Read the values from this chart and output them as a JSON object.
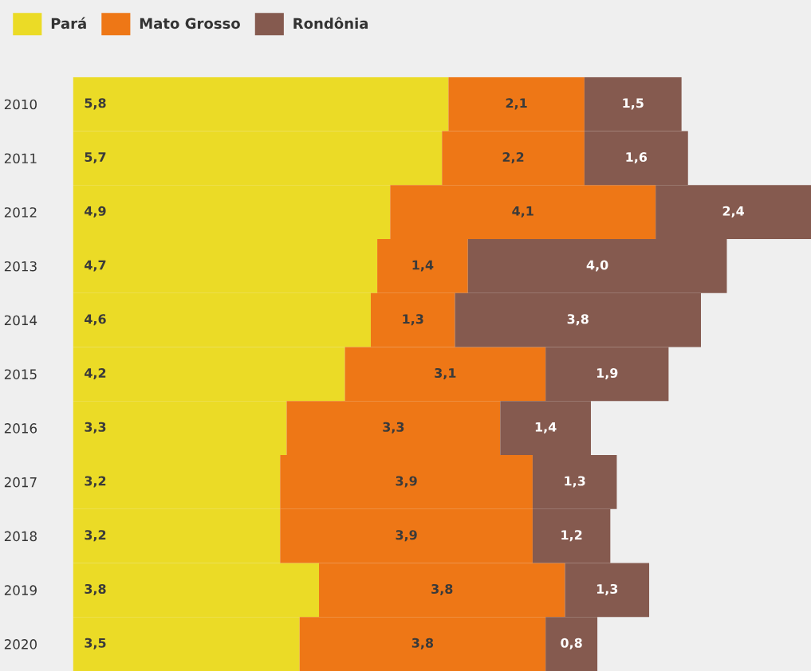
{
  "chart_data": {
    "type": "bar",
    "orientation": "horizontal",
    "stacked": true,
    "legend": "top left",
    "grid": false,
    "categories": [
      "2010",
      "2011",
      "2012",
      "2013",
      "2014",
      "2015",
      "2016",
      "2017",
      "2018",
      "2019",
      "2020"
    ],
    "series": [
      {
        "name": "Pará",
        "color": "#ebdb26",
        "values": [
          5.8,
          5.7,
          4.9,
          4.7,
          4.6,
          4.2,
          3.3,
          3.2,
          3.2,
          3.8,
          3.5
        ],
        "value_labels": [
          "5,8",
          "5,7",
          "4,9",
          "4,7",
          "4,6",
          "4,2",
          "3,3",
          "3,2",
          "3,2",
          "3,8",
          "3,5"
        ]
      },
      {
        "name": "Mato Grosso",
        "color": "#ee7716",
        "values": [
          2.1,
          2.2,
          4.1,
          1.4,
          1.3,
          3.1,
          3.3,
          3.9,
          3.9,
          3.8,
          3.8
        ],
        "value_labels": [
          "2,1",
          "2,2",
          "4,1",
          "1,4",
          "1,3",
          "3,1",
          "3,3",
          "3,9",
          "3,9",
          "3,8",
          "3,8"
        ]
      },
      {
        "name": "Rondônia",
        "color": "#855a4f",
        "values": [
          1.5,
          1.6,
          2.4,
          4.0,
          3.8,
          1.9,
          1.4,
          1.3,
          1.2,
          1.3,
          0.8
        ],
        "value_labels": [
          "1,5",
          "1,6",
          "2,4",
          "4,0",
          "3,8",
          "1,9",
          "1,4",
          "1,3",
          "1,2",
          "1,3",
          "0,8"
        ]
      }
    ]
  }
}
